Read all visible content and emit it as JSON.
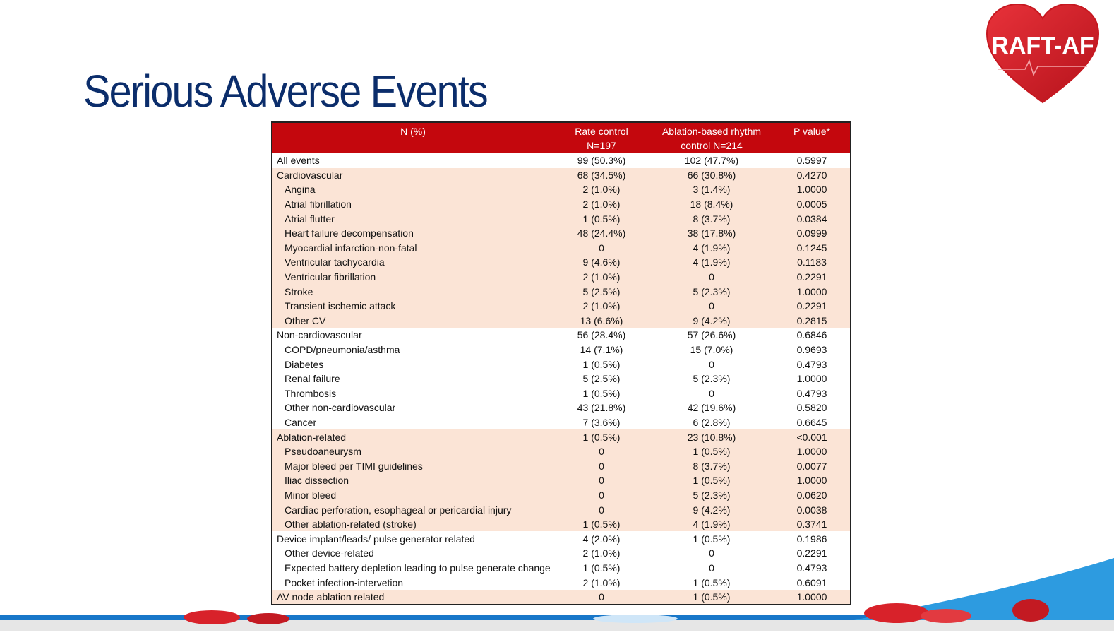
{
  "slide": {
    "title": "Serious Adverse Events",
    "logo_text": "RAFT-AF",
    "accent_color": "#c4070d",
    "title_color": "#0b2d6b",
    "shade_color": "#fbe4d6"
  },
  "table": {
    "headers": {
      "col1": "N (%)",
      "col2_line1": "Rate control",
      "col2_line2": "N=197",
      "col3_line1": "Ablation-based rhythm",
      "col3_line2": "control N=214",
      "col4": "P value*"
    },
    "rows": [
      {
        "label": "All events",
        "rate": "99 (50.3%)",
        "ablation": "102 (47.7%)",
        "p": "0.5997",
        "sub": false,
        "shade": false
      },
      {
        "label": "Cardiovascular",
        "rate": "68 (34.5%)",
        "ablation": "66 (30.8%)",
        "p": "0.4270",
        "sub": false,
        "shade": true
      },
      {
        "label": "Angina",
        "rate": "2 (1.0%)",
        "ablation": "3 (1.4%)",
        "p": "1.0000",
        "sub": true,
        "shade": true
      },
      {
        "label": "Atrial fibrillation",
        "rate": "2 (1.0%)",
        "ablation": "18 (8.4%)",
        "p": "0.0005",
        "sub": true,
        "shade": true
      },
      {
        "label": "Atrial flutter",
        "rate": "1 (0.5%)",
        "ablation": "8 (3.7%)",
        "p": "0.0384",
        "sub": true,
        "shade": true
      },
      {
        "label": "Heart failure decompensation",
        "rate": "48 (24.4%)",
        "ablation": "38 (17.8%)",
        "p": "0.0999",
        "sub": true,
        "shade": true
      },
      {
        "label": "Myocardial infarction-non-fatal",
        "rate": "0",
        "ablation": "4 (1.9%)",
        "p": "0.1245",
        "sub": true,
        "shade": true
      },
      {
        "label": "Ventricular tachycardia",
        "rate": "9 (4.6%)",
        "ablation": "4 (1.9%)",
        "p": "0.1183",
        "sub": true,
        "shade": true
      },
      {
        "label": "Ventricular fibrillation",
        "rate": "2 (1.0%)",
        "ablation": "0",
        "p": "0.2291",
        "sub": true,
        "shade": true
      },
      {
        "label": "Stroke",
        "rate": "5 (2.5%)",
        "ablation": "5 (2.3%)",
        "p": "1.0000",
        "sub": true,
        "shade": true
      },
      {
        "label": "Transient ischemic attack",
        "rate": "2 (1.0%)",
        "ablation": "0",
        "p": "0.2291",
        "sub": true,
        "shade": true
      },
      {
        "label": "Other CV",
        "rate": "13 (6.6%)",
        "ablation": "9 (4.2%)",
        "p": "0.2815",
        "sub": true,
        "shade": true
      },
      {
        "label": "Non-cardiovascular",
        "rate": "56 (28.4%)",
        "ablation": "57 (26.6%)",
        "p": "0.6846",
        "sub": false,
        "shade": false
      },
      {
        "label": "COPD/pneumonia/asthma",
        "rate": "14 (7.1%)",
        "ablation": "15 (7.0%)",
        "p": "0.9693",
        "sub": true,
        "shade": false
      },
      {
        "label": "Diabetes",
        "rate": "1 (0.5%)",
        "ablation": "0",
        "p": "0.4793",
        "sub": true,
        "shade": false
      },
      {
        "label": "Renal failure",
        "rate": "5 (2.5%)",
        "ablation": "5 (2.3%)",
        "p": "1.0000",
        "sub": true,
        "shade": false
      },
      {
        "label": "Thrombosis",
        "rate": "1 (0.5%)",
        "ablation": "0",
        "p": "0.4793",
        "sub": true,
        "shade": false
      },
      {
        "label": "Other non-cardiovascular",
        "rate": "43 (21.8%)",
        "ablation": "42 (19.6%)",
        "p": "0.5820",
        "sub": true,
        "shade": false
      },
      {
        "label": "Cancer",
        "rate": "7 (3.6%)",
        "ablation": "6 (2.8%)",
        "p": "0.6645",
        "sub": true,
        "shade": false
      },
      {
        "label": "Ablation-related",
        "rate": "1 (0.5%)",
        "ablation": "23 (10.8%)",
        "p": "<0.001",
        "sub": false,
        "shade": true
      },
      {
        "label": "Pseudoaneurysm",
        "rate": "0",
        "ablation": "1 (0.5%)",
        "p": "1.0000",
        "sub": true,
        "shade": true
      },
      {
        "label": "Major bleed per TIMI guidelines",
        "rate": "0",
        "ablation": "8 (3.7%)",
        "p": "0.0077",
        "sub": true,
        "shade": true
      },
      {
        "label": "Iliac dissection",
        "rate": "0",
        "ablation": "1 (0.5%)",
        "p": "1.0000",
        "sub": true,
        "shade": true
      },
      {
        "label": "Minor bleed",
        "rate": "0",
        "ablation": "5 (2.3%)",
        "p": "0.0620",
        "sub": true,
        "shade": true
      },
      {
        "label": "Cardiac perforation, esophageal or pericardial injury",
        "rate": "0",
        "ablation": "9 (4.2%)",
        "p": "0.0038",
        "sub": true,
        "shade": true
      },
      {
        "label": "Other ablation-related (stroke)",
        "rate": "1 (0.5%)",
        "ablation": "4 (1.9%)",
        "p": "0.3741",
        "sub": true,
        "shade": true
      },
      {
        "label": "Device implant/leads/ pulse generator related",
        "rate": "4 (2.0%)",
        "ablation": "1 (0.5%)",
        "p": "0.1986",
        "sub": false,
        "shade": false
      },
      {
        "label": "Other device-related",
        "rate": "2 (1.0%)",
        "ablation": "0",
        "p": "0.2291",
        "sub": true,
        "shade": false
      },
      {
        "label": "Expected battery depletion leading to pulse generate change",
        "rate": "1 (0.5%)",
        "ablation": "0",
        "p": "0.4793",
        "sub": true,
        "shade": false
      },
      {
        "label": "Pocket infection-intervetion",
        "rate": "2 (1.0%)",
        "ablation": "1 (0.5%)",
        "p": "0.6091",
        "sub": true,
        "shade": false
      },
      {
        "label": "AV node ablation related",
        "rate": "0",
        "ablation": "1 (0.5%)",
        "p": "1.0000",
        "sub": false,
        "shade": true
      }
    ]
  }
}
